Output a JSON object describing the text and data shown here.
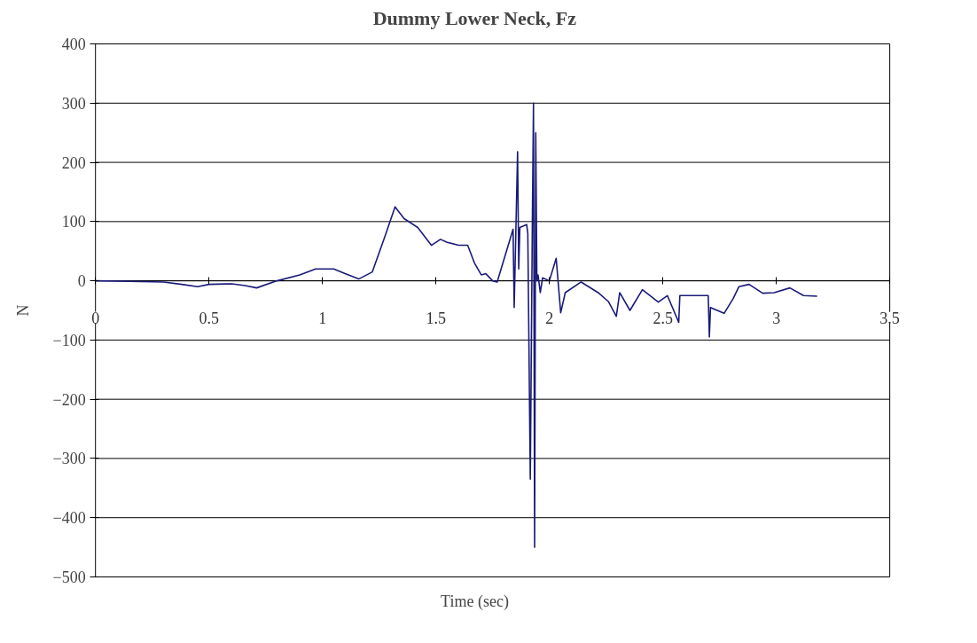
{
  "chart_data": {
    "type": "line",
    "title": "Dummy Lower Neck, Fz",
    "xlabel": "Time (sec)",
    "ylabel": "N",
    "xlim": [
      0,
      3.5
    ],
    "xticks": [
      0,
      0.5,
      1,
      1.5,
      2,
      2.5,
      3,
      3.5
    ],
    "ylim": [
      -500,
      400
    ],
    "yticks": [
      -500,
      -400,
      -300,
      -200,
      -100,
      0,
      100,
      200,
      300,
      400
    ],
    "grid": "y",
    "marker": "none",
    "line_style": "solid",
    "series": [
      {
        "color": "#1a1a7a",
        "x": [
          0,
          0.15,
          0.3,
          0.38,
          0.45,
          0.5,
          0.6,
          0.66,
          0.71,
          0.8,
          0.9,
          0.97,
          1.05,
          1.1,
          1.16,
          1.22,
          1.28,
          1.32,
          1.36,
          1.42,
          1.48,
          1.52,
          1.55,
          1.6,
          1.64,
          1.67,
          1.7,
          1.72,
          1.75,
          1.77,
          1.84,
          1.845,
          1.86,
          1.865,
          1.87,
          1.9,
          1.905,
          1.916,
          1.925,
          1.93,
          1.935,
          1.94,
          1.945,
          1.95,
          1.96,
          1.97,
          2.0,
          2.03,
          2.05,
          2.07,
          2.14,
          2.215,
          2.26,
          2.295,
          2.31,
          2.355,
          2.41,
          2.48,
          2.52,
          2.57,
          2.575,
          2.6,
          2.7,
          2.705,
          2.71,
          2.77,
          2.81,
          2.835,
          2.88,
          2.94,
          2.99,
          3.06,
          3.12,
          3.18
        ],
        "values": [
          0,
          -1,
          -2,
          -6,
          -10,
          -6,
          -5,
          -8,
          -12,
          0,
          10,
          20,
          20,
          12,
          3,
          15,
          80,
          125,
          105,
          90,
          60,
          70,
          65,
          60,
          60,
          30,
          10,
          12,
          0,
          -2,
          87,
          -45,
          218,
          20,
          90,
          95,
          80,
          -335,
          100,
          300,
          -450,
          250,
          0,
          10,
          -20,
          5,
          0,
          38,
          -54,
          -20,
          -2,
          -20,
          -35,
          -60,
          -20,
          -50,
          -15,
          -36,
          -25,
          -70,
          -25,
          -25,
          -25,
          -95,
          -45,
          -55,
          -30,
          -10,
          -6,
          -21,
          -20,
          -12,
          -25,
          -26
        ]
      }
    ]
  }
}
